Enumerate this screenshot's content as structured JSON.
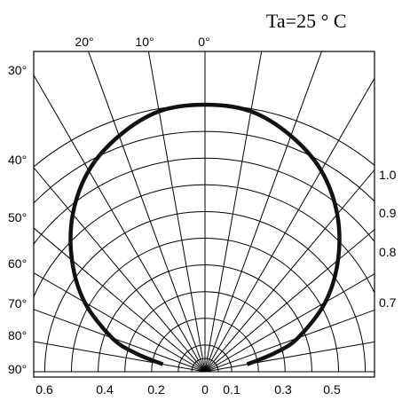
{
  "chart_data": {
    "type": "polar",
    "title": "Ta=25 ° C",
    "angle_unit": "degrees",
    "angle_ticks_top": [
      "20°",
      "10°",
      "0°"
    ],
    "angle_ticks_left": [
      "30°",
      "40°",
      "50°",
      "60°",
      "70°",
      "80°",
      "90°"
    ],
    "radius_ticks_right": [
      "1.0",
      "0.9",
      "0.8",
      "0.7"
    ],
    "bottom_ticks": [
      "0.6",
      "0.4",
      "0.2",
      "0",
      "0.1",
      "0.3",
      "0.5"
    ],
    "grid": true,
    "series": [
      {
        "points": [
          {
            "angle": -80,
            "value": 0.16
          },
          {
            "angle": -75,
            "value": 0.27
          },
          {
            "angle": -70,
            "value": 0.37
          },
          {
            "angle": -60,
            "value": 0.52
          },
          {
            "angle": -50,
            "value": 0.65
          },
          {
            "angle": -40,
            "value": 0.77
          },
          {
            "angle": -30,
            "value": 0.87
          },
          {
            "angle": -20,
            "value": 0.94
          },
          {
            "angle": -10,
            "value": 0.99
          },
          {
            "angle": 0,
            "value": 1.0
          },
          {
            "angle": 10,
            "value": 0.99
          },
          {
            "angle": 20,
            "value": 0.94
          },
          {
            "angle": 30,
            "value": 0.87
          },
          {
            "angle": 40,
            "value": 0.77
          },
          {
            "angle": 50,
            "value": 0.65
          },
          {
            "angle": 60,
            "value": 0.52
          },
          {
            "angle": 70,
            "value": 0.37
          },
          {
            "angle": 75,
            "value": 0.27
          },
          {
            "angle": 80,
            "value": 0.16
          }
        ]
      }
    ]
  }
}
